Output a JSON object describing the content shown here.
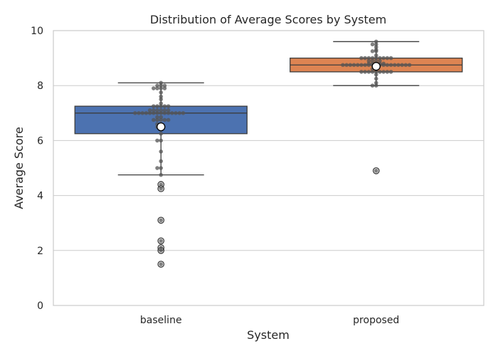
{
  "chart_data": {
    "type": "box",
    "title": "Distribution of Average Scores by System",
    "xlabel": "System",
    "ylabel": "Average Score",
    "ylim": [
      0,
      10
    ],
    "yticks": [
      0,
      2,
      4,
      6,
      8,
      10
    ],
    "grid": "y",
    "categories": [
      "baseline",
      "proposed"
    ],
    "series": [
      {
        "category": "baseline",
        "color": "#4c72b0",
        "q1": 6.25,
        "median": 7.0,
        "q3": 7.25,
        "whisker_low": 4.75,
        "whisker_high": 8.1,
        "mean": 6.5,
        "outliers": [
          4.4,
          4.25,
          3.1,
          2.35,
          2.1,
          2.0,
          1.5
        ],
        "points": [
          8.1,
          8.0,
          8.0,
          8.0,
          7.9,
          7.9,
          7.9,
          7.9,
          7.75,
          7.6,
          7.5,
          7.35,
          7.25,
          7.25,
          7.25,
          7.25,
          7.25,
          7.1,
          7.1,
          7.1,
          7.1,
          7.1,
          7.1,
          7.0,
          7.0,
          7.0,
          7.0,
          7.0,
          7.0,
          7.0,
          7.0,
          7.0,
          7.0,
          7.0,
          7.0,
          7.0,
          7.0,
          6.85,
          6.85,
          6.75,
          6.75,
          6.75,
          6.75,
          6.75,
          6.6,
          6.6,
          6.5,
          6.5,
          6.4,
          6.25,
          6.0,
          6.0,
          5.6,
          5.25,
          5.0,
          5.0,
          4.75,
          4.4,
          4.25,
          3.1,
          2.35,
          2.1,
          2.0,
          1.5
        ]
      },
      {
        "category": "proposed",
        "color": "#dd8452",
        "q1": 8.5,
        "median": 8.75,
        "q3": 9.0,
        "whisker_low": 8.0,
        "whisker_high": 9.6,
        "mean": 8.7,
        "outliers": [
          4.9
        ],
        "points": [
          9.6,
          9.5,
          9.5,
          9.4,
          9.3,
          9.25,
          9.25,
          9.1,
          9.0,
          9.0,
          9.0,
          9.0,
          9.0,
          9.0,
          9.0,
          9.0,
          9.0,
          8.9,
          8.9,
          8.9,
          8.9,
          8.8,
          8.8,
          8.8,
          8.8,
          8.8,
          8.75,
          8.75,
          8.75,
          8.75,
          8.75,
          8.75,
          8.75,
          8.75,
          8.75,
          8.75,
          8.75,
          8.75,
          8.75,
          8.75,
          8.75,
          8.75,
          8.75,
          8.75,
          8.75,
          8.6,
          8.6,
          8.5,
          8.5,
          8.5,
          8.5,
          8.5,
          8.5,
          8.5,
          8.5,
          8.5,
          8.4,
          8.25,
          8.1,
          8.0,
          8.0,
          4.9
        ]
      }
    ]
  }
}
